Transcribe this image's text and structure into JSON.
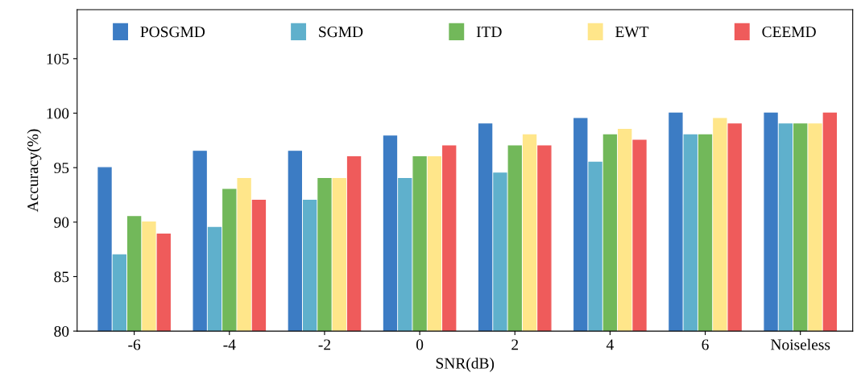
{
  "chart_data": {
    "type": "bar",
    "xlabel": "SNR(dB)",
    "ylabel": "Accuracy(%)",
    "categories": [
      "-6",
      "-4",
      "-2",
      "0",
      "2",
      "4",
      "6",
      "Noiseless"
    ],
    "series": [
      {
        "name": "POSGMD",
        "color": "#3c7cc4",
        "values": [
          95,
          96.5,
          96.5,
          97.9,
          99,
          99.5,
          100,
          100
        ]
      },
      {
        "name": "SGMD",
        "color": "#5fb0cc",
        "values": [
          87,
          89.5,
          92,
          94,
          94.5,
          95.5,
          98,
          99
        ]
      },
      {
        "name": "ITD",
        "color": "#72b85a",
        "values": [
          90.5,
          93,
          94,
          96,
          97,
          98,
          98,
          99
        ]
      },
      {
        "name": "EWT",
        "color": "#ffe68a",
        "values": [
          90,
          94,
          94,
          96,
          98,
          98.5,
          99.5,
          99
        ]
      },
      {
        "name": "CEEMD",
        "color": "#ef5b5b",
        "values": [
          88.9,
          92,
          96,
          97,
          97,
          97.5,
          99,
          100
        ]
      }
    ],
    "ylim": [
      80,
      109.5
    ],
    "yticks": [
      80,
      85,
      90,
      95,
      100,
      105
    ],
    "grid": false,
    "legend": "top"
  }
}
